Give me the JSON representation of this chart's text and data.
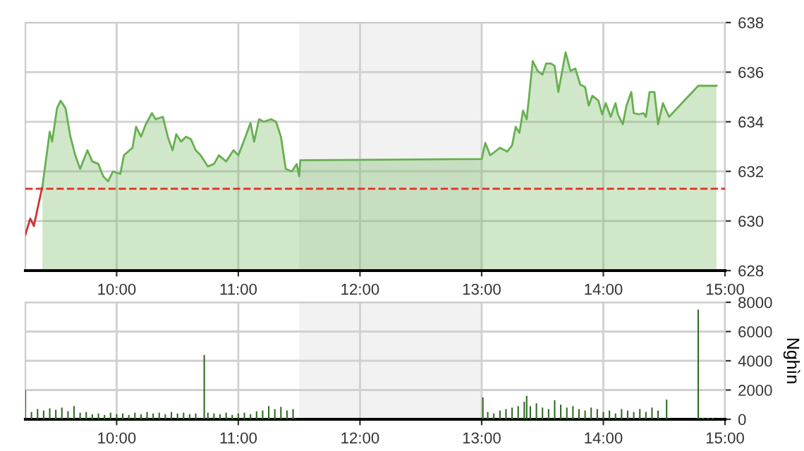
{
  "chart_data": [
    {
      "type": "area",
      "xlim": [
        9.25,
        15
      ],
      "ylim": [
        628,
        638
      ],
      "yticks": [
        628,
        630,
        632,
        634,
        636,
        638
      ],
      "xticks": [
        {
          "value": 10,
          "label": "10:00"
        },
        {
          "value": 11,
          "label": "11:00"
        },
        {
          "value": 12,
          "label": "12:00"
        },
        {
          "value": 13,
          "label": "13:00"
        },
        {
          "value": 14,
          "label": "14:00"
        },
        {
          "value": 15,
          "label": "15:00"
        }
      ],
      "grid": true,
      "series": [
        {
          "type": "line",
          "color": "#cc3333",
          "x": [
            9.25,
            9.29,
            9.32,
            9.35,
            9.39
          ],
          "values": [
            629.45,
            630.1,
            629.8,
            630.5,
            631.4
          ]
        },
        {
          "type": "area",
          "color": "#66b04f",
          "x": [
            9.39,
            9.45,
            9.47,
            9.51,
            9.54,
            9.58,
            9.62,
            9.66,
            9.7,
            9.76,
            9.8,
            9.85,
            9.89,
            9.93,
            9.97,
            10.03,
            10.06,
            10.13,
            10.16,
            10.2,
            10.24,
            10.29,
            10.32,
            10.38,
            10.42,
            10.46,
            10.49,
            10.53,
            10.57,
            10.61,
            10.65,
            10.69,
            10.75,
            10.8,
            10.84,
            10.9,
            10.96,
            11.0,
            11.04,
            11.1,
            11.13,
            11.17,
            11.21,
            11.27,
            11.31,
            11.35,
            11.39,
            11.44,
            11.48,
            11.5,
            11.51,
            13.0,
            13.03,
            13.07,
            13.15,
            13.21,
            13.25,
            13.28,
            13.31,
            13.34,
            13.37,
            13.42,
            13.46,
            13.5,
            13.53,
            13.57,
            13.6,
            13.63,
            13.69,
            13.73,
            13.77,
            13.81,
            13.85,
            13.88,
            13.91,
            13.96,
            13.99,
            14.02,
            14.06,
            14.1,
            14.12,
            14.16,
            14.19,
            14.23,
            14.25,
            14.29,
            14.33,
            14.35,
            14.38,
            14.42,
            14.45,
            14.49,
            14.54,
            14.78,
            14.93
          ],
          "values": [
            631.4,
            633.6,
            633.2,
            634.55,
            634.85,
            634.55,
            633.4,
            632.65,
            632.1,
            632.85,
            632.4,
            632.3,
            631.8,
            631.6,
            632.0,
            631.9,
            632.65,
            632.95,
            633.8,
            633.4,
            633.9,
            634.35,
            634.1,
            634.2,
            633.4,
            632.85,
            633.5,
            633.2,
            633.4,
            633.3,
            632.85,
            632.65,
            632.2,
            632.3,
            632.65,
            632.4,
            632.85,
            632.65,
            633.15,
            633.95,
            633.2,
            634.1,
            634.0,
            634.1,
            634.0,
            633.4,
            632.1,
            632.0,
            632.3,
            631.8,
            632.45,
            632.5,
            633.15,
            632.65,
            632.95,
            632.8,
            633.05,
            633.8,
            633.55,
            634.45,
            634.1,
            636.45,
            636.05,
            635.9,
            636.35,
            636.35,
            636.25,
            635.2,
            636.8,
            636.05,
            636.15,
            635.5,
            635.4,
            634.65,
            635.05,
            634.85,
            634.3,
            634.75,
            634.2,
            634.75,
            634.3,
            633.9,
            634.65,
            635.2,
            634.35,
            634.3,
            634.35,
            634.2,
            635.2,
            635.2,
            633.9,
            634.75,
            634.2,
            635.45,
            635.45
          ]
        }
      ],
      "ref_lines": [
        {
          "axis": "y",
          "value": 631.3,
          "color": "#e03020",
          "line_style": "dashed"
        }
      ],
      "bands": [
        {
          "axis": "x",
          "from": 11.5,
          "to": 13.0,
          "color": "#f2f2f2"
        }
      ]
    },
    {
      "type": "bar",
      "xlim": [
        9.25,
        15
      ],
      "ylim": [
        0,
        8000
      ],
      "yticks": [
        0,
        2000,
        4000,
        6000,
        8000
      ],
      "ylabel": "Nghìn",
      "xticks": [
        {
          "value": 10,
          "label": "10:00"
        },
        {
          "value": 11,
          "label": "11:00"
        },
        {
          "value": 12,
          "label": "12:00"
        },
        {
          "value": 13,
          "label": "13:00"
        },
        {
          "value": 14,
          "label": "14:00"
        },
        {
          "value": 15,
          "label": "15:00"
        }
      ],
      "grid": true,
      "series": [
        {
          "color": "#2f6b22",
          "x": [
            9.25,
            9.3,
            9.35,
            9.4,
            9.45,
            9.5,
            9.55,
            9.6,
            9.65,
            9.7,
            9.75,
            9.8,
            9.85,
            9.9,
            9.95,
            10.0,
            10.05,
            10.1,
            10.15,
            10.2,
            10.25,
            10.3,
            10.35,
            10.4,
            10.45,
            10.5,
            10.55,
            10.6,
            10.65,
            10.72,
            10.75,
            10.8,
            10.85,
            10.9,
            10.95,
            11.0,
            11.05,
            11.1,
            11.15,
            11.2,
            11.25,
            11.3,
            11.35,
            11.4,
            11.45,
            13.01,
            13.05,
            13.1,
            13.15,
            13.2,
            13.25,
            13.3,
            13.35,
            13.37,
            13.4,
            13.45,
            13.5,
            13.55,
            13.6,
            13.65,
            13.7,
            13.75,
            13.8,
            13.85,
            13.9,
            13.95,
            14.0,
            14.05,
            14.1,
            14.15,
            14.2,
            14.25,
            14.3,
            14.35,
            14.4,
            14.45,
            14.52,
            14.78,
            14.82,
            14.86,
            14.9
          ],
          "values": [
            2000,
            500,
            700,
            600,
            750,
            650,
            800,
            550,
            900,
            450,
            500,
            350,
            400,
            300,
            450,
            350,
            400,
            300,
            450,
            350,
            500,
            400,
            450,
            350,
            500,
            400,
            450,
            350,
            400,
            4400,
            450,
            400,
            350,
            450,
            300,
            400,
            450,
            350,
            550,
            600,
            900,
            700,
            850,
            600,
            700,
            1500,
            500,
            400,
            600,
            700,
            800,
            900,
            1200,
            1600,
            900,
            1100,
            800,
            700,
            1300,
            1000,
            800,
            900,
            700,
            600,
            800,
            700,
            500,
            600,
            400,
            700,
            600,
            500,
            700,
            500,
            800,
            600,
            1350,
            7500,
            100,
            100,
            100
          ]
        }
      ],
      "bands": [
        {
          "axis": "x",
          "from": 11.5,
          "to": 13.0,
          "color": "#f2f2f2"
        }
      ]
    }
  ]
}
